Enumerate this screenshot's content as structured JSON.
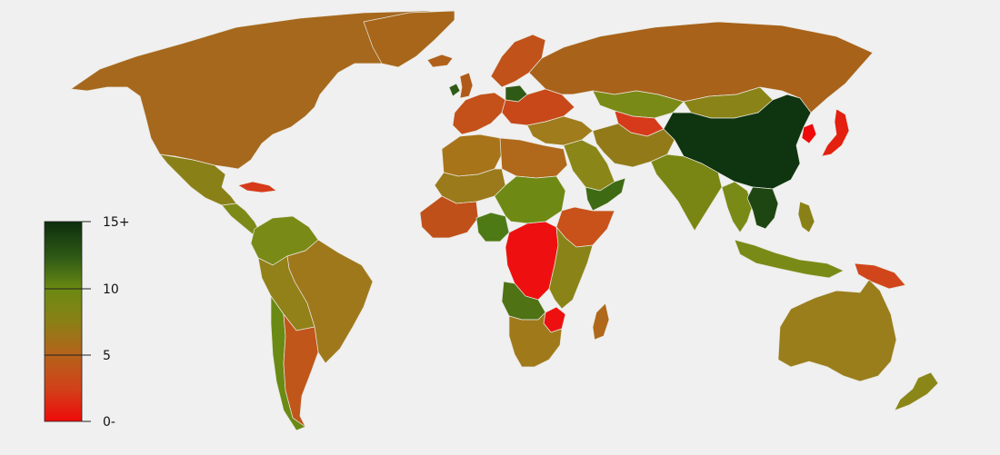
{
  "legend": {
    "ticks": [
      "15+",
      "10",
      "5",
      "0-"
    ],
    "tick_values": [
      15,
      10,
      5,
      0
    ],
    "color_stops": [
      "#0d2e0d",
      "#2f5a16",
      "#6b8a12",
      "#8a8016",
      "#b4641a",
      "#d2401a",
      "#ee0a0a"
    ]
  },
  "regions": [
    {
      "id": "north-america",
      "color": "#a6681c"
    },
    {
      "id": "greenland",
      "color": "#a8661a"
    },
    {
      "id": "mexico",
      "color": "#8a8018"
    },
    {
      "id": "central-america",
      "color": "#7e8a18"
    },
    {
      "id": "cuba",
      "color": "#d63a1a"
    },
    {
      "id": "colombia-venezuela",
      "color": "#7a8a16"
    },
    {
      "id": "brazil",
      "color": "#a0781c"
    },
    {
      "id": "peru-bolivia",
      "color": "#928018"
    },
    {
      "id": "chile",
      "color": "#6a8a14"
    },
    {
      "id": "argentina",
      "color": "#c0561a"
    },
    {
      "id": "iceland",
      "color": "#b0601a"
    },
    {
      "id": "ireland",
      "color": "#2f5a16"
    },
    {
      "id": "uk",
      "color": "#b05a1a"
    },
    {
      "id": "scandinavia",
      "color": "#c0521a"
    },
    {
      "id": "western-europe",
      "color": "#c4501a"
    },
    {
      "id": "poland",
      "color": "#2f5a16"
    },
    {
      "id": "eastern-europe",
      "color": "#c8481a"
    },
    {
      "id": "russia",
      "color": "#a8621a"
    },
    {
      "id": "kazakhstan-central-asia",
      "color": "#7a8a16"
    },
    {
      "id": "caucasus-uzbek",
      "color": "#d63a1a"
    },
    {
      "id": "middle-east",
      "color": "#a07c1c"
    },
    {
      "id": "saudi-arabia",
      "color": "#8a8618"
    },
    {
      "id": "yemen-oman",
      "color": "#3e6a14"
    },
    {
      "id": "iran-afghanistan",
      "color": "#927a18"
    },
    {
      "id": "india",
      "color": "#7a8614"
    },
    {
      "id": "mongolia",
      "color": "#8a8418"
    },
    {
      "id": "china",
      "color": "#0f3410"
    },
    {
      "id": "north-korea",
      "color": "#ee0a0a"
    },
    {
      "id": "japan",
      "color": "#e42010"
    },
    {
      "id": "southeast-asia",
      "color": "#1e4612"
    },
    {
      "id": "myanmar-thailand",
      "color": "#7a8a16"
    },
    {
      "id": "indonesia",
      "color": "#7a8a16"
    },
    {
      "id": "philippines",
      "color": "#8a8018"
    },
    {
      "id": "papua",
      "color": "#d0461a"
    },
    {
      "id": "australia",
      "color": "#9a7e1c"
    },
    {
      "id": "new-zealand",
      "color": "#8a8618"
    },
    {
      "id": "north-africa",
      "color": "#a8741a"
    },
    {
      "id": "libya-egypt",
      "color": "#b0681a"
    },
    {
      "id": "sahel",
      "color": "#9a7a1a"
    },
    {
      "id": "west-africa",
      "color": "#c0501a"
    },
    {
      "id": "nigeria",
      "color": "#4e7a16"
    },
    {
      "id": "chad-sudan",
      "color": "#6e8a14"
    },
    {
      "id": "ethiopia-somalia",
      "color": "#c8521a"
    },
    {
      "id": "central-africa-drc",
      "color": "#ee1010"
    },
    {
      "id": "east-africa",
      "color": "#8a8418"
    },
    {
      "id": "angola-zambia",
      "color": "#4e7214"
    },
    {
      "id": "zimbabwe",
      "color": "#ee1010"
    },
    {
      "id": "southern-africa",
      "color": "#a07a1a"
    },
    {
      "id": "madagascar",
      "color": "#b0681a"
    }
  ]
}
